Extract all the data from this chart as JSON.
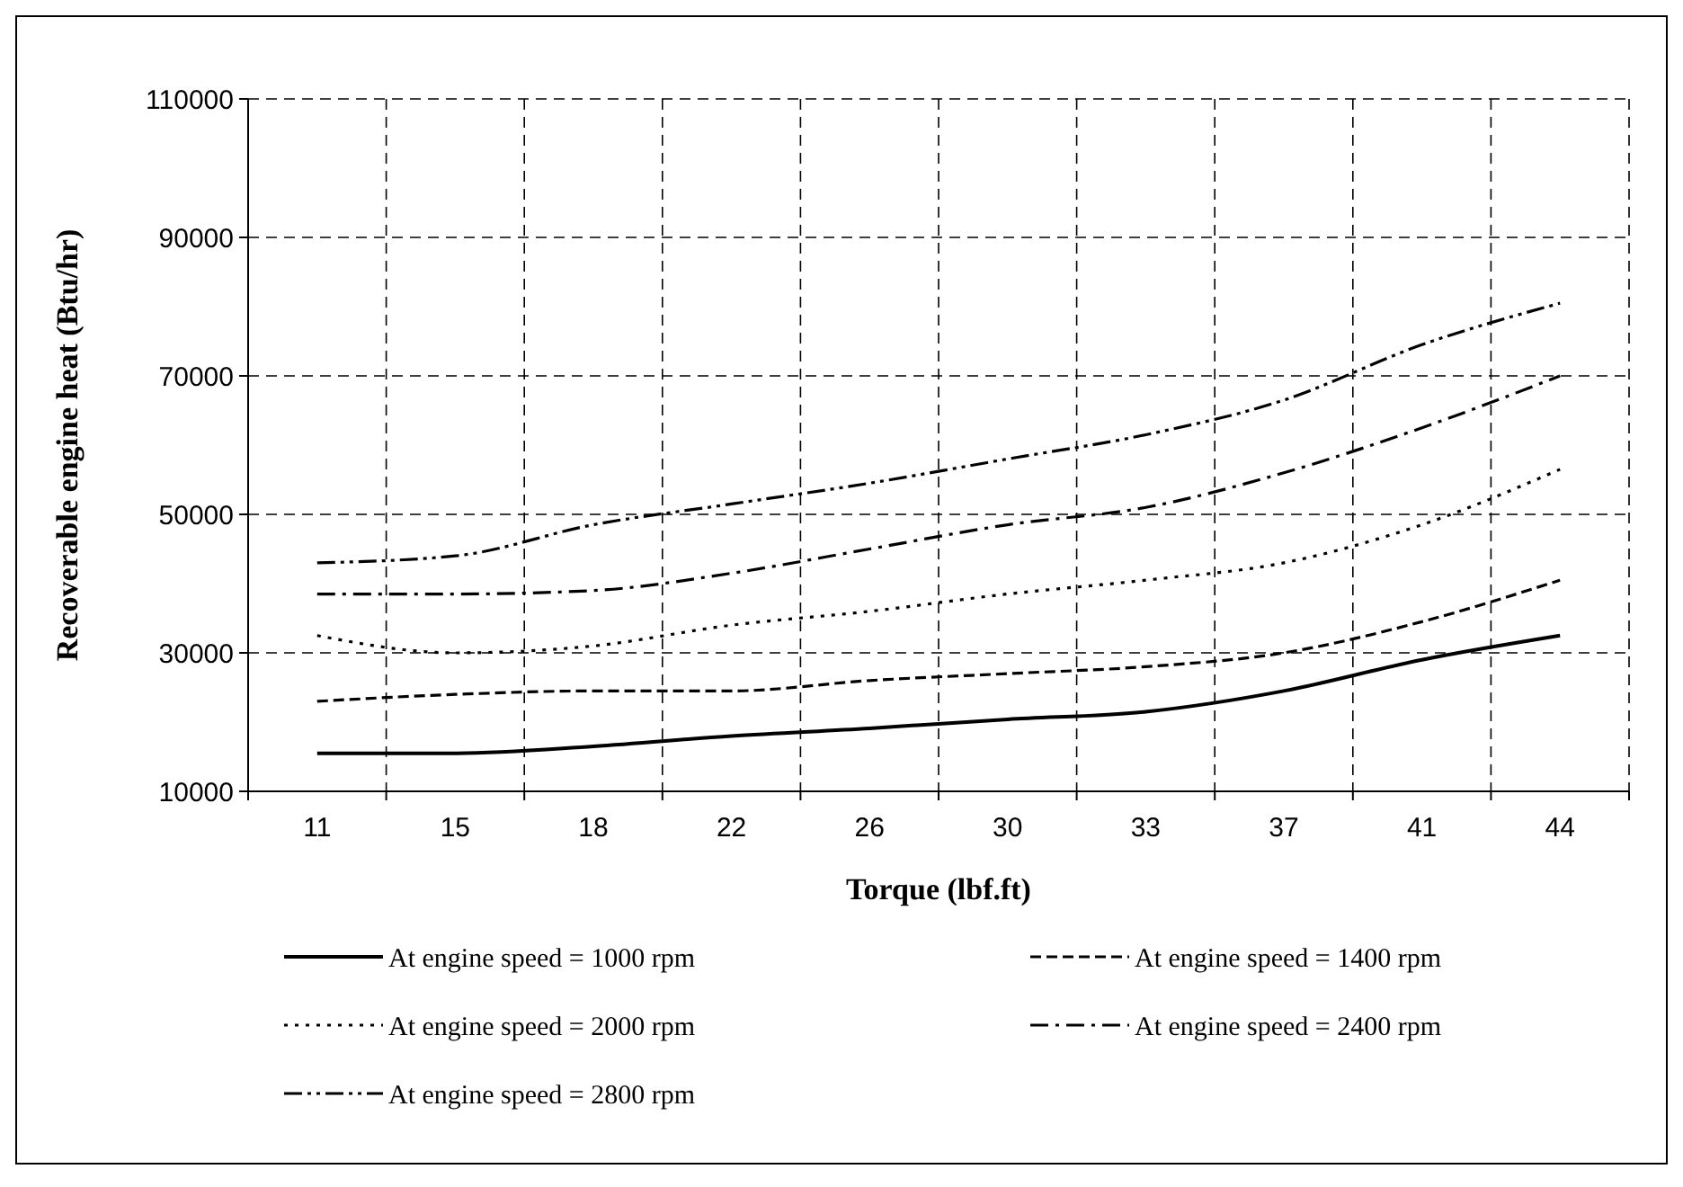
{
  "chart_data": {
    "type": "line",
    "xlabel": "Torque (lbf.ft)",
    "ylabel": "Recoverable engine heat (Btu/hr)",
    "categories": [
      "11",
      "15",
      "18",
      "22",
      "26",
      "30",
      "33",
      "37",
      "41",
      "44"
    ],
    "ylim": [
      10000,
      110000
    ],
    "yticks": [
      10000,
      30000,
      50000,
      70000,
      90000,
      110000
    ],
    "grid": true,
    "legend": "bottom",
    "series": [
      {
        "name": "At engine speed = 1000 rpm",
        "color": "#000000",
        "line_style": "solid",
        "values": [
          15500,
          15500,
          16500,
          18000,
          19100,
          20400,
          21500,
          24500,
          29000,
          32500
        ]
      },
      {
        "name": "At engine speed = 1400 rpm",
        "color": "#000000",
        "line_style": "dashed",
        "values": [
          23000,
          24000,
          24500,
          24500,
          26000,
          27000,
          28000,
          30000,
          34500,
          40500
        ]
      },
      {
        "name": "At engine speed = 2000 rpm",
        "color": "#000000",
        "line_style": "dotted",
        "values": [
          32500,
          30000,
          31000,
          34000,
          36000,
          38500,
          40500,
          43000,
          48500,
          56500
        ]
      },
      {
        "name": "At engine speed = 2400 rpm",
        "color": "#000000",
        "line_style": "dashdot",
        "values": [
          38500,
          38500,
          39000,
          41500,
          45000,
          48500,
          51000,
          56000,
          62500,
          70000
        ]
      },
      {
        "name": "At engine speed = 2800 rpm",
        "color": "#000000",
        "line_style": "dashdotdot",
        "values": [
          43000,
          44000,
          48500,
          51500,
          54500,
          58000,
          61500,
          66500,
          74500,
          80500
        ]
      }
    ]
  }
}
